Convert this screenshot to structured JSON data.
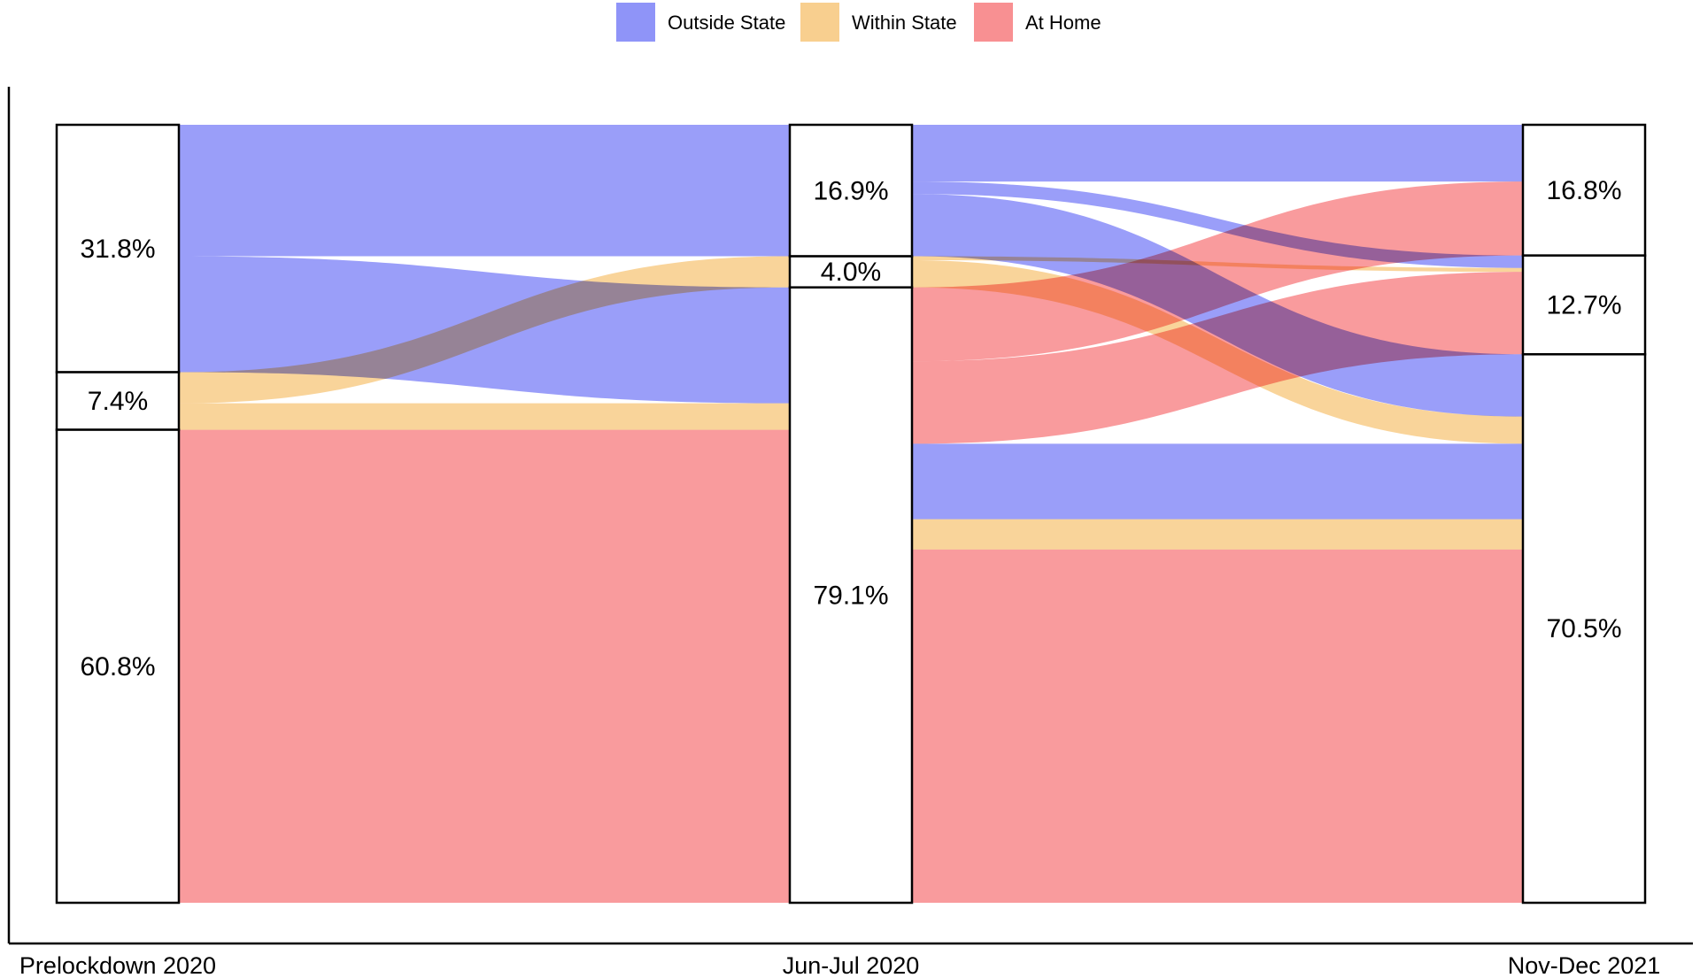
{
  "chart_data": {
    "type": "alluvial",
    "categories": [
      "Outside State",
      "Within State",
      "At Home"
    ],
    "colors": {
      "Outside State": "#8f94f8",
      "Within State": "#f8cf8f",
      "At Home": "#f89092"
    },
    "legend_position": "top-center",
    "stages": [
      {
        "name": "Prelockdown 2020",
        "nodes": [
          {
            "category": "Outside State",
            "value": 31.8,
            "label": "31.8%"
          },
          {
            "category": "Within State",
            "value": 7.4,
            "label": "7.4%"
          },
          {
            "category": "At Home",
            "value": 60.8,
            "label": "60.8%"
          }
        ]
      },
      {
        "name": "Jun-Jul 2020",
        "nodes": [
          {
            "category": "Outside State",
            "value": 16.9,
            "label": "16.9%"
          },
          {
            "category": "Within State",
            "value": 4.0,
            "label": "4.0%"
          },
          {
            "category": "At Home",
            "value": 79.1,
            "label": "79.1%"
          }
        ]
      },
      {
        "name": "Nov-Dec 2021",
        "nodes": [
          {
            "category": "Outside State",
            "value": 16.8,
            "label": "16.8%"
          },
          {
            "category": "Within State",
            "value": 12.7,
            "label": "12.7%"
          },
          {
            "category": "At Home",
            "value": 70.5,
            "label": "70.5%"
          }
        ]
      }
    ],
    "flows_1_to_2": [
      {
        "source": "Outside State",
        "target": "Outside State",
        "value": 16.9
      },
      {
        "source": "Outside State",
        "target": "At Home",
        "value": 14.9
      },
      {
        "source": "Within State",
        "target": "Within State",
        "value": 4.0
      },
      {
        "source": "Within State",
        "target": "At Home",
        "value": 3.4
      },
      {
        "source": "At Home",
        "target": "At Home",
        "value": 60.8
      }
    ],
    "paths_2_to_3": [
      {
        "colorBy": "Outside State",
        "from": "Outside State",
        "to": "Outside State",
        "value": 7.3
      },
      {
        "colorBy": "Outside State",
        "from": "Outside State",
        "to": "Within State",
        "value": 1.6
      },
      {
        "colorBy": "Outside State",
        "from": "Outside State",
        "to": "At Home",
        "value": 8.0
      },
      {
        "colorBy": "Within State",
        "from": "Within State",
        "to": "Within State",
        "value": 0.5
      },
      {
        "colorBy": "Within State",
        "from": "Within State",
        "to": "At Home",
        "value": 3.5
      },
      {
        "colorBy": "At Home",
        "from": "At Home",
        "to": "Outside State",
        "value": 9.5
      },
      {
        "colorBy": "At Home",
        "from": "At Home",
        "to": "Within State",
        "value": 10.6
      },
      {
        "colorBy": "Outside State",
        "from": "At Home",
        "to": "At Home",
        "value": 9.7
      },
      {
        "colorBy": "Within State",
        "from": "At Home",
        "to": "At Home",
        "value": 3.9
      },
      {
        "colorBy": "At Home",
        "from": "At Home",
        "to": "At Home",
        "value": 45.4
      }
    ]
  }
}
